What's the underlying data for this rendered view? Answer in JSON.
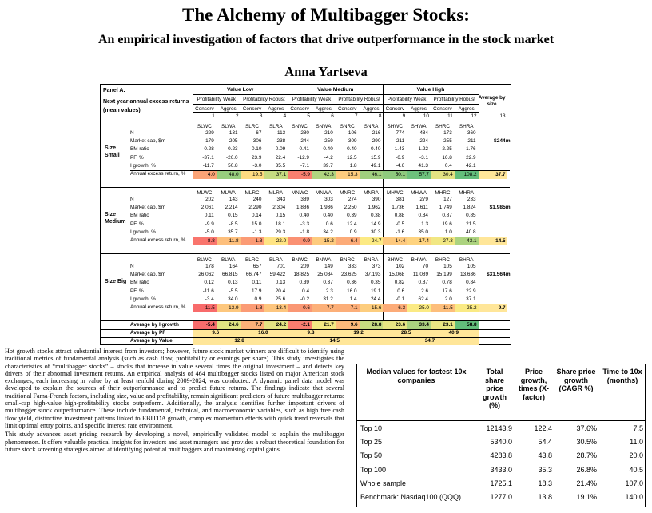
{
  "paper": {
    "title": "The Alchemy of Multibagger Stocks:",
    "subtitle": "An empirical investigation of factors that drive outperformance in the stock market",
    "author": "Anna Yartseva"
  },
  "panel": {
    "heading": "Panel A:",
    "heading2": "Next year annual excess returns (mean values)",
    "groups": [
      "Value Low",
      "Value Medium",
      "Value High"
    ],
    "prof_labels": [
      "Profitability Weak",
      "Profitability Robust"
    ],
    "inv_labels": [
      "Conserv",
      "Aggres"
    ],
    "avg_by_size_label": "Average by size",
    "col_numbers": [
      "1",
      "2",
      "3",
      "4",
      "5",
      "6",
      "7",
      "8",
      "9",
      "10",
      "11",
      "12",
      "13"
    ],
    "row_labels": [
      "N",
      "Market cap, $m",
      "BM ratio",
      "PF, %",
      "I growth, %",
      "Annual excess return, %"
    ],
    "sizes": [
      {
        "label": "Size Small",
        "codes": [
          "SLWC",
          "SLWA",
          "SLRC",
          "SLRA",
          "SNWC",
          "SNWA",
          "SNRC",
          "SNRA",
          "SHWC",
          "SHWA",
          "SHRC",
          "SHRA"
        ],
        "rows": [
          [
            "229",
            "131",
            "67",
            "113",
            "280",
            "210",
            "106",
            "216",
            "774",
            "484",
            "173",
            "360"
          ],
          [
            "179",
            "205",
            "306",
            "238",
            "244",
            "259",
            "309",
            "290",
            "211",
            "224",
            "255",
            "211"
          ],
          [
            "-0.28",
            "-0.23",
            "0.10",
            "0.09",
            "0.41",
            "0.40",
            "0.40",
            "0.40",
            "1.43",
            "1.22",
            "2.25",
            "1.76"
          ],
          [
            "-37.1",
            "-26.0",
            "23.9",
            "22.4",
            "-12.9",
            "-4.2",
            "12.5",
            "15.9",
            "-6.9",
            "-3.1",
            "16.8",
            "22.9"
          ],
          [
            "-11.7",
            "50.8",
            "-3.0",
            "35.5",
            "-7.1",
            "39.7",
            "1.8",
            "49.1",
            "-4.6",
            "41.3",
            "0.4",
            "42.1"
          ],
          [
            "4.0",
            "48.0",
            "19.5",
            "37.1",
            "-5.9",
            "42.3",
            "15.3",
            "46.1",
            "50.1",
            "57.7",
            "30.4",
            "108.2"
          ]
        ],
        "mcap_avg": "$244m",
        "excess_avg": "37.7"
      },
      {
        "label": "Size Medium",
        "codes": [
          "MLWC",
          "MLWA",
          "MLRC",
          "MLRA",
          "MNWC",
          "MNWA",
          "MNRC",
          "MNRA",
          "MHWC",
          "MHWA",
          "MHRC",
          "MHRA"
        ],
        "rows": [
          [
            "202",
            "143",
            "240",
            "343",
            "389",
            "303",
            "274",
            "390",
            "381",
            "279",
            "127",
            "233"
          ],
          [
            "2,061",
            "2,214",
            "2,290",
            "2,304",
            "1,886",
            "1,936",
            "2,250",
            "1,962",
            "1,736",
            "1,611",
            "1,749",
            "1,824"
          ],
          [
            "0.11",
            "0.15",
            "0.14",
            "0.15",
            "0.40",
            "0.40",
            "0.39",
            "0.38",
            "0.88",
            "0.84",
            "0.87",
            "0.85"
          ],
          [
            "-9.9",
            "-8.5",
            "15.0",
            "18.1",
            "-3.3",
            "0.6",
            "12.4",
            "14.9",
            "-0.5",
            "1.3",
            "19.6",
            "21.5"
          ],
          [
            "-5.0",
            "35.7",
            "-1.3",
            "29.3",
            "-1.8",
            "34.2",
            "0.9",
            "30.3",
            "-1.6",
            "35.0",
            "1.0",
            "40.8"
          ],
          [
            "-8.8",
            "11.8",
            "1.8",
            "22.0",
            "-0.9",
            "15.2",
            "6.4",
            "24.7",
            "14.4",
            "17.4",
            "27.3",
            "43.1"
          ]
        ],
        "mcap_avg": "$1,985m",
        "excess_avg": "14.5"
      },
      {
        "label": "Size Big",
        "codes": [
          "BLWC",
          "BLWA",
          "BLRC",
          "BLRA",
          "BNWC",
          "BNWA",
          "BNRC",
          "BNRA",
          "BHWC",
          "BHWA",
          "BHRC",
          "BHRA"
        ],
        "rows": [
          [
            "178",
            "164",
            "657",
            "701",
            "209",
            "149",
            "333",
            "373",
            "102",
            "70",
            "105",
            "105"
          ],
          [
            "26,062",
            "66,815",
            "66,747",
            "59,422",
            "18,825",
            "25,084",
            "23,625",
            "37,193",
            "15,068",
            "11,089",
            "15,199",
            "13,636"
          ],
          [
            "0.12",
            "0.13",
            "0.11",
            "0.13",
            "0.39",
            "0.37",
            "0.36",
            "0.35",
            "0.82",
            "0.87",
            "0.78",
            "0.84"
          ],
          [
            "-11.6",
            "-5.5",
            "17.9",
            "20.4",
            "0.4",
            "2.3",
            "16.0",
            "19.1",
            "0.6",
            "2.6",
            "17.6",
            "22.9"
          ],
          [
            "-3.4",
            "34.0",
            "0.9",
            "25.6",
            "-0.2",
            "31.2",
            "1.4",
            "24.4",
            "-0.1",
            "62.4",
            "2.0",
            "37.1"
          ],
          [
            "-11.5",
            "13.9",
            "1.8",
            "13.4",
            "0.6",
            "7.7",
            "7.1",
            "15.6",
            "6.3",
            "25.0",
            "11.5",
            "25.2"
          ]
        ],
        "mcap_avg": "$31,564m",
        "excess_avg": "9.7"
      }
    ],
    "avg_growth_label": "Average by I growth",
    "avg_growth": [
      "-5.4",
      "24.6",
      "7.7",
      "24.2",
      "-2.1",
      "21.7",
      "9.6",
      "28.8",
      "23.6",
      "33.4",
      "23.1",
      "58.8"
    ],
    "avg_pf_label": "Average by PF",
    "avg_pf": [
      "9.6",
      "16.0",
      "9.8",
      "19.2",
      "28.5",
      "40.9"
    ],
    "avg_value_label": "Average by Value",
    "avg_value": [
      "12.8",
      "14.5",
      "34.7"
    ]
  },
  "abstract": {
    "p1": "Hot growth stocks attract substantial interest from investors; however, future stock market winners are difficult to identify using traditional metrics of fundamental analysis (such as cash flow, profitability or earnings per share). This study investigates the characteristics of “multibagger stocks” – stocks that increase in value several times the original investment – and detects key drivers of their abnormal investment returns. An empirical analysis of 464 multibagger stocks listed on major American stock exchanges, each increasing in value by at least tenfold during 2009-2024, was conducted. A dynamic panel data model was developed to explain the sources of their outperformance and to predict future returns. The findings indicate that several traditional Fama-French factors, including size, value and profitability, remain significant predictors of future multibagger returns: small-cap high-value high-profitability stocks outperform. Additionally, the analysis identifies further important drivers of multibagger stock outperformance. These include fundamental, technical, and macroeconomic variables, such as high free cash flow yield, distinctive investment patterns linked to EBITDA growth, complex momentum effects with quick trend reversals that limit optimal entry points, and specific interest rate environment.",
    "p2": "This study advances asset pricing research by developing a novel, empirically validated model to explain the multibagger phenomenon. It offers valuable practical insights for investors and asset managers and provides a robust theoretical foundation for future stock screening strategies aimed at identifying potential multibaggers and maximising capital gains."
  },
  "table_b": {
    "headers": [
      "Median values for fastest 10x companies",
      "Total share price growth (%)",
      "Price growth, times (X-factor)",
      "Share price growth (CAGR %)",
      "Time to 10x (months)"
    ],
    "rows": [
      [
        "Top 10",
        "12143.9",
        "122.4",
        "37.6%",
        "7.5"
      ],
      [
        "Top 25",
        "5340.0",
        "54.4",
        "30.5%",
        "11.0"
      ],
      [
        "Top 50",
        "4283.8",
        "43.8",
        "28.7%",
        "20.0"
      ],
      [
        "Top 100",
        "3433.0",
        "35.3",
        "26.8%",
        "40.5"
      ],
      [
        "Whole sample",
        "1725.1",
        "18.3",
        "21.4%",
        "107.0"
      ],
      [
        "Benchmark: Nasdaq100 (QQQ)",
        "1277.0",
        "13.8",
        "19.1%",
        "140.0"
      ]
    ]
  },
  "colors": {
    "heat_low": "#f8696b",
    "heat_mid": "#ffeb84",
    "heat_high": "#63be7b",
    "avg_fill": "#ffe699"
  }
}
